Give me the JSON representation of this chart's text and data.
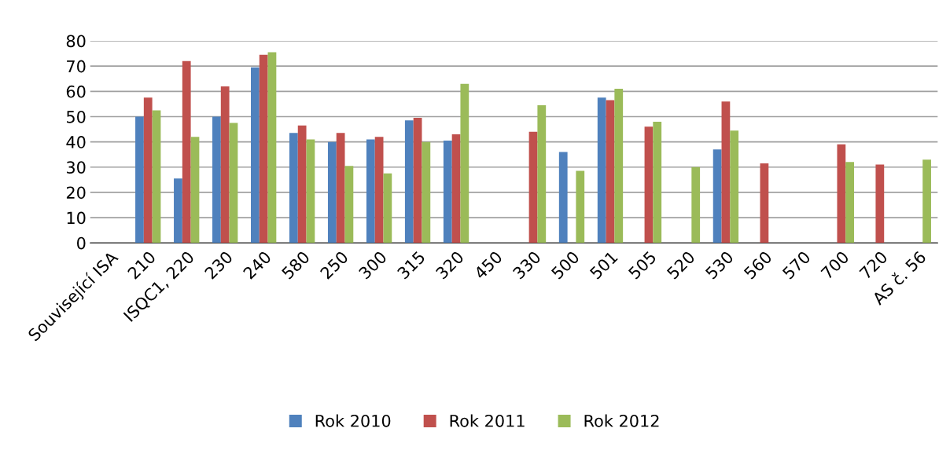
{
  "chart_data": {
    "type": "bar",
    "categories": [
      "Související ISA",
      "210",
      "ISQC1, 220",
      "230",
      "240",
      "580",
      "250",
      "300",
      "315",
      "320",
      "450",
      "330",
      "500",
      "501",
      "505",
      "520",
      "530",
      "560",
      "570",
      "700",
      "720",
      "AS č. 56"
    ],
    "series": [
      {
        "name": "Rok 2010",
        "color": "#4f81bd",
        "values": [
          null,
          50,
          25.5,
          50,
          69.5,
          43.5,
          40,
          41,
          48.5,
          40.5,
          null,
          null,
          36,
          57.5,
          null,
          null,
          37,
          null,
          null,
          null,
          null,
          null
        ]
      },
      {
        "name": "Rok 2011",
        "color": "#c0504d",
        "values": [
          null,
          57.5,
          72,
          62,
          74.5,
          46.5,
          43.5,
          42,
          49.5,
          43,
          null,
          44,
          null,
          56.5,
          46,
          null,
          56,
          31.5,
          null,
          39,
          31,
          null
        ]
      },
      {
        "name": "Rok 2012",
        "color": "#9bbb59",
        "values": [
          null,
          52.5,
          42,
          47.5,
          75.5,
          41,
          30.5,
          27.5,
          40,
          63,
          null,
          54.5,
          28.5,
          61,
          48,
          30,
          44.5,
          null,
          null,
          32,
          null,
          33
        ]
      }
    ],
    "ylim": [
      0,
      80
    ],
    "yticks": [
      0,
      10,
      20,
      30,
      40,
      50,
      60,
      70,
      80
    ],
    "grid": "y",
    "legend": "bottom"
  }
}
